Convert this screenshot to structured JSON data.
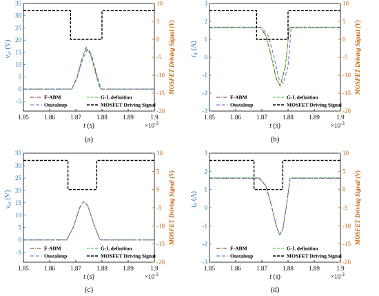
{
  "colors": {
    "left_axis": "#1f77b4",
    "right_axis": "#c0640a",
    "fabm": "#8b2500",
    "gl": "#32cd32",
    "oustaloup": "#6a5acd",
    "mosfet": "#000000"
  },
  "chart_data": [
    {
      "type": "line",
      "panel_label": "(a)",
      "ylabel_var": "v",
      "ylabel_sub": "cr",
      "ylabel_unit": "(V)",
      "y2label": "MOSFET Driving Signal (V)",
      "xlabel_var": "t",
      "xlabel_unit": "(s)",
      "x_exponent": "×10",
      "x_exponent_power": "-3",
      "xlim": [
        1.85,
        1.9
      ],
      "ylim": [
        -9,
        35
      ],
      "y2lim": [
        -20,
        10
      ],
      "xticks": [
        "1.85",
        "1.86",
        "1.87",
        "1.88",
        "1.89",
        "1.9"
      ],
      "yticks": [
        "-5",
        "0",
        "5",
        "10",
        "15",
        "20",
        "25",
        "30",
        "35"
      ],
      "y2ticks": [
        "-20",
        "-15",
        "-10",
        "-5",
        "0",
        "5",
        "10"
      ],
      "legend": [
        "F-ABM",
        "G-L definition",
        "Oustaloup",
        "MOSFET Driving Signal"
      ],
      "series": [
        {
          "name": "F-ABM",
          "x": [
            1.85,
            1.8685,
            1.8705,
            1.8725,
            1.874,
            1.8755,
            1.8775,
            1.879,
            1.8795,
            1.9
          ],
          "y": [
            0,
            0,
            5,
            13,
            17,
            15,
            7,
            1,
            0,
            0
          ]
        },
        {
          "name": "G-L definition",
          "x": [
            1.85,
            1.8685,
            1.8705,
            1.8725,
            1.874,
            1.8755,
            1.8775,
            1.879,
            1.8795,
            1.9
          ],
          "y": [
            0,
            0,
            5,
            13,
            16.5,
            14.5,
            6.5,
            1,
            0,
            0
          ]
        },
        {
          "name": "Oustaloup",
          "x": [
            1.85,
            1.8685,
            1.8705,
            1.8727,
            1.8743,
            1.876,
            1.878,
            1.8795,
            1.88,
            1.9
          ],
          "y": [
            0,
            0,
            4.5,
            12.5,
            16,
            14,
            6,
            0.5,
            0,
            0
          ]
        },
        {
          "name": "MOSFET Driving Signal",
          "axis": "right",
          "x": [
            1.85,
            1.868,
            1.868,
            1.88,
            1.88,
            1.9
          ],
          "y": [
            8,
            8,
            0,
            0,
            8,
            8
          ]
        }
      ]
    },
    {
      "type": "line",
      "panel_label": "(b)",
      "ylabel_var": "i",
      "ylabel_sub": "lr",
      "ylabel_unit": "(A)",
      "y2label": "MOSFET Driving Signal (V)",
      "xlabel_var": "t",
      "xlabel_unit": "(s)",
      "x_exponent": "×10",
      "x_exponent_power": "-3",
      "xlim": [
        1.85,
        1.9
      ],
      "ylim": [
        -3,
        3
      ],
      "y2lim": [
        -20,
        10
      ],
      "xticks": [
        "1.85",
        "1.86",
        "1.87",
        "1.88",
        "1.89",
        "1.9"
      ],
      "yticks": [
        "-3",
        "-2",
        "-1",
        "0",
        "1",
        "2",
        "3"
      ],
      "y2ticks": [
        "-20",
        "-15",
        "-10",
        "-5",
        "0",
        "5",
        "10"
      ],
      "legend": [
        "F-ABM",
        "G-L definition",
        "Oustaloup",
        "MOSFET Driving Signal"
      ],
      "series": [
        {
          "name": "F-ABM",
          "x": [
            1.85,
            1.8695,
            1.8715,
            1.8735,
            1.8755,
            1.877,
            1.879,
            1.8805,
            1.9
          ],
          "y": [
            1.65,
            1.65,
            1.2,
            0.1,
            -1.2,
            -1.6,
            -0.5,
            1.65,
            1.65
          ]
        },
        {
          "name": "G-L definition",
          "x": [
            1.85,
            1.8695,
            1.8715,
            1.8735,
            1.8755,
            1.877,
            1.879,
            1.8805,
            1.9
          ],
          "y": [
            1.68,
            1.68,
            1.25,
            0.15,
            -1.15,
            -1.55,
            -0.45,
            1.68,
            1.68
          ]
        },
        {
          "name": "Oustaloup",
          "x": [
            1.85,
            1.87,
            1.8725,
            1.8745,
            1.8765,
            1.8782,
            1.88,
            1.8812,
            1.9
          ],
          "y": [
            1.65,
            1.65,
            1.2,
            0.1,
            -1.2,
            -1.45,
            -0.5,
            1.65,
            1.65
          ]
        },
        {
          "name": "MOSFET Driving Signal",
          "axis": "right",
          "x": [
            1.85,
            1.868,
            1.868,
            1.88,
            1.88,
            1.9
          ],
          "y": [
            8,
            8,
            0,
            0,
            8,
            8
          ]
        }
      ]
    },
    {
      "type": "line",
      "panel_label": "(c)",
      "ylabel_var": "v",
      "ylabel_sub": "cr",
      "ylabel_unit": "(V)",
      "y2label": "MOSFET Driving Signal (V)",
      "xlabel_var": "t",
      "xlabel_unit": "(s)",
      "x_exponent": "×10",
      "x_exponent_power": "-3",
      "xlim": [
        1.85,
        1.9
      ],
      "ylim": [
        -9,
        35
      ],
      "y2lim": [
        -20,
        10
      ],
      "xticks": [
        "1.85",
        "1.86",
        "1.87",
        "1.88",
        "1.89",
        "1.9"
      ],
      "yticks": [
        "-5",
        "0",
        "5",
        "10",
        "15",
        "20",
        "25",
        "30",
        "35"
      ],
      "y2ticks": [
        "-20",
        "-15",
        "-10",
        "-5",
        "0",
        "5",
        "10"
      ],
      "legend": [
        "F-ABM",
        "G-L definition",
        "Oustaloup",
        "MOSFET Driving Signal"
      ],
      "series": [
        {
          "name": "F-ABM",
          "x": [
            1.85,
            1.8665,
            1.869,
            1.8715,
            1.873,
            1.8745,
            1.877,
            1.879,
            1.8795,
            1.9
          ],
          "y": [
            0,
            0,
            5,
            13,
            15.5,
            14,
            6,
            0.5,
            0,
            0
          ]
        },
        {
          "name": "G-L definition",
          "x": [
            1.85,
            1.8665,
            1.869,
            1.8715,
            1.873,
            1.8745,
            1.877,
            1.879,
            1.8795,
            1.9
          ],
          "y": [
            0,
            0,
            5,
            13,
            15.5,
            14,
            6,
            0.5,
            0,
            0
          ]
        },
        {
          "name": "Oustaloup",
          "x": [
            1.85,
            1.8665,
            1.869,
            1.8715,
            1.873,
            1.8745,
            1.877,
            1.879,
            1.8795,
            1.9
          ],
          "y": [
            0,
            0,
            5,
            13,
            15.5,
            14,
            6,
            0.5,
            0,
            0
          ]
        },
        {
          "name": "MOSFET Driving Signal",
          "axis": "right",
          "x": [
            1.85,
            1.867,
            1.867,
            1.878,
            1.878,
            1.9
          ],
          "y": [
            8,
            8,
            0,
            0,
            8,
            8
          ]
        }
      ]
    },
    {
      "type": "line",
      "panel_label": "(d)",
      "ylabel_var": "i",
      "ylabel_sub": "lr",
      "ylabel_unit": "(A)",
      "y2label": "MOSFET Driving Signal (V)",
      "xlabel_var": "t",
      "xlabel_unit": "(s)",
      "x_exponent": "×10",
      "x_exponent_power": "-3",
      "xlim": [
        1.85,
        1.9
      ],
      "ylim": [
        -3,
        3
      ],
      "y2lim": [
        -20,
        10
      ],
      "xticks": [
        "1.85",
        "1.86",
        "1.87",
        "1.88",
        "1.89",
        "1.9"
      ],
      "yticks": [
        "-3",
        "-2",
        "-1",
        "0",
        "1",
        "2",
        "3"
      ],
      "y2ticks": [
        "-20",
        "-15",
        "-10",
        "-5",
        "0",
        "5",
        "10"
      ],
      "legend": [
        "F-ABM",
        "G-L definition",
        "Oustaloup",
        "MOSFET Driving Signal"
      ],
      "series": [
        {
          "name": "F-ABM",
          "x": [
            1.85,
            1.869,
            1.8715,
            1.8735,
            1.8755,
            1.8768,
            1.878,
            1.8795,
            1.8808,
            1.9
          ],
          "y": [
            1.62,
            1.62,
            1.2,
            0.2,
            -1.0,
            -1.5,
            -1.2,
            0.2,
            1.62,
            1.62
          ]
        },
        {
          "name": "G-L definition",
          "x": [
            1.85,
            1.869,
            1.8715,
            1.8735,
            1.8755,
            1.8768,
            1.878,
            1.8795,
            1.8808,
            1.9
          ],
          "y": [
            1.64,
            1.64,
            1.22,
            0.22,
            -0.98,
            -1.48,
            -1.18,
            0.22,
            1.64,
            1.64
          ]
        },
        {
          "name": "Oustaloup",
          "x": [
            1.85,
            1.869,
            1.8715,
            1.8735,
            1.8755,
            1.8768,
            1.878,
            1.8795,
            1.8808,
            1.9
          ],
          "y": [
            1.62,
            1.62,
            1.2,
            0.2,
            -1.0,
            -1.5,
            -1.2,
            0.2,
            1.62,
            1.62
          ]
        },
        {
          "name": "MOSFET Driving Signal",
          "axis": "right",
          "x": [
            1.85,
            1.867,
            1.867,
            1.878,
            1.878,
            1.9
          ],
          "y": [
            8,
            8,
            0,
            0,
            8,
            8
          ]
        }
      ]
    }
  ]
}
